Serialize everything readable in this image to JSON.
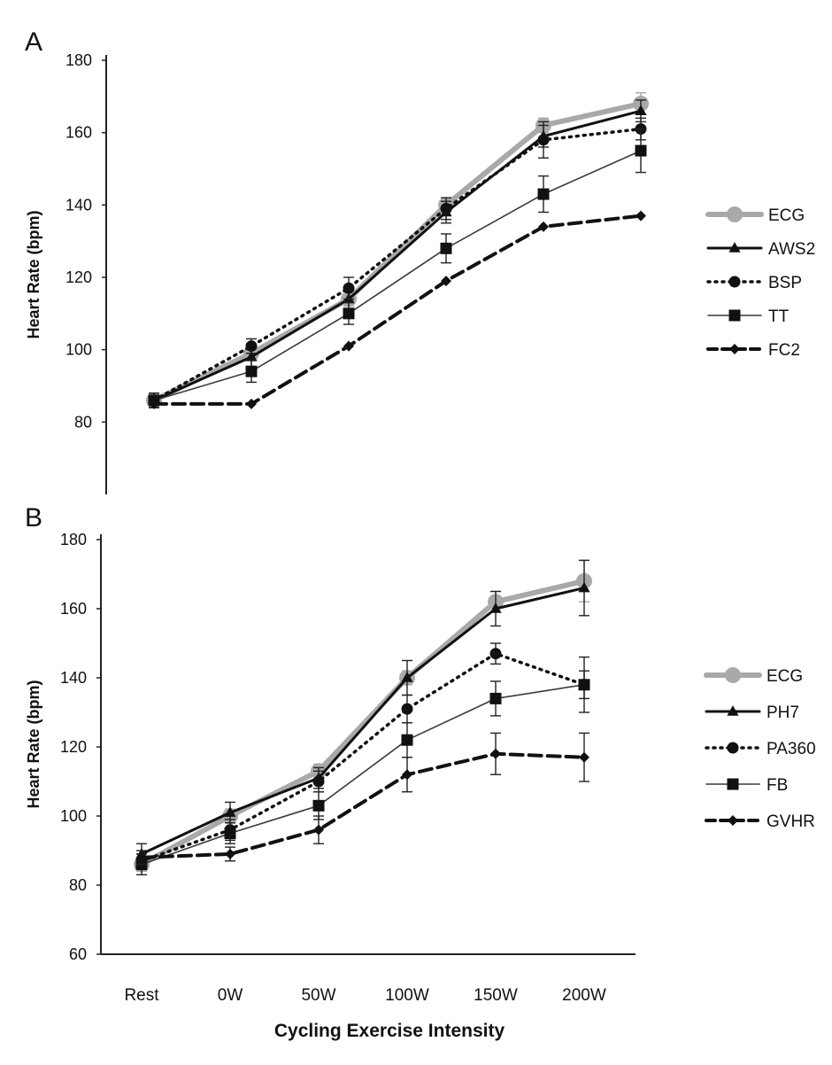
{
  "figure": {
    "xlabel": "Cycling Exercise Intensity"
  },
  "chart_data": [
    {
      "panel_label": "A",
      "type": "line",
      "ylabel": "Heart Rate (bpm)",
      "ylim": [
        60,
        180
      ],
      "yticks": [
        80,
        100,
        120,
        140,
        160,
        180
      ],
      "categories": [
        "Rest",
        "0W",
        "50W",
        "100W",
        "150W",
        "200W"
      ],
      "show_xticks": false,
      "legend": "right",
      "series": [
        {
          "name": "ECG",
          "values": [
            86,
            99,
            114,
            140,
            162,
            168
          ],
          "errors": [
            1,
            2,
            2,
            2,
            2,
            3
          ],
          "style": "ecg",
          "marker": "circle"
        },
        {
          "name": "AWS2",
          "values": [
            86,
            98,
            114,
            138,
            159,
            166
          ],
          "errors": [
            2,
            3,
            3,
            3,
            3,
            3
          ],
          "style": "solid",
          "marker": "triangle"
        },
        {
          "name": "BSP",
          "values": [
            86,
            101,
            117,
            139,
            158,
            161
          ],
          "errors": [
            2,
            2,
            3,
            3,
            5,
            3
          ],
          "style": "dotted",
          "marker": "circle"
        },
        {
          "name": "TT",
          "values": [
            86,
            94,
            110,
            128,
            143,
            155
          ],
          "errors": [
            2,
            3,
            3,
            4,
            5,
            6
          ],
          "style": "thin",
          "marker": "square"
        },
        {
          "name": "FC2",
          "values": [
            85,
            85,
            101,
            119,
            134,
            137
          ],
          "errors": [
            0,
            0,
            0,
            0,
            0,
            0
          ],
          "style": "dashed",
          "marker": "diamond"
        }
      ]
    },
    {
      "panel_label": "B",
      "type": "line",
      "ylabel": "Heart Rate (bpm)",
      "ylim": [
        60,
        180
      ],
      "yticks": [
        60,
        80,
        100,
        120,
        140,
        160,
        180
      ],
      "categories": [
        "Rest",
        "0W",
        "50W",
        "100W",
        "150W",
        "200W"
      ],
      "show_xticks": true,
      "legend": "right",
      "series": [
        {
          "name": "ECG",
          "values": [
            86,
            100,
            113,
            140,
            162,
            168
          ],
          "errors": [
            2,
            2,
            2,
            2,
            3,
            6
          ],
          "style": "ecg",
          "marker": "circle"
        },
        {
          "name": "PH7",
          "values": [
            89,
            101,
            111,
            140,
            160,
            166
          ],
          "errors": [
            3,
            3,
            3,
            5,
            5,
            8
          ],
          "style": "solid",
          "marker": "triangle"
        },
        {
          "name": "PA360",
          "values": [
            87,
            96,
            110,
            131,
            147,
            138
          ],
          "errors": [
            2,
            3,
            3,
            4,
            3,
            4
          ],
          "style": "dotted",
          "marker": "circle"
        },
        {
          "name": "FB",
          "values": [
            86,
            95,
            103,
            122,
            134,
            138
          ],
          "errors": [
            3,
            3,
            4,
            5,
            5,
            8
          ],
          "style": "thin",
          "marker": "square"
        },
        {
          "name": "GVHR",
          "values": [
            88,
            89,
            96,
            112,
            118,
            117
          ],
          "errors": [
            2,
            2,
            4,
            5,
            6,
            7
          ],
          "style": "dashed",
          "marker": "diamond"
        }
      ]
    }
  ]
}
